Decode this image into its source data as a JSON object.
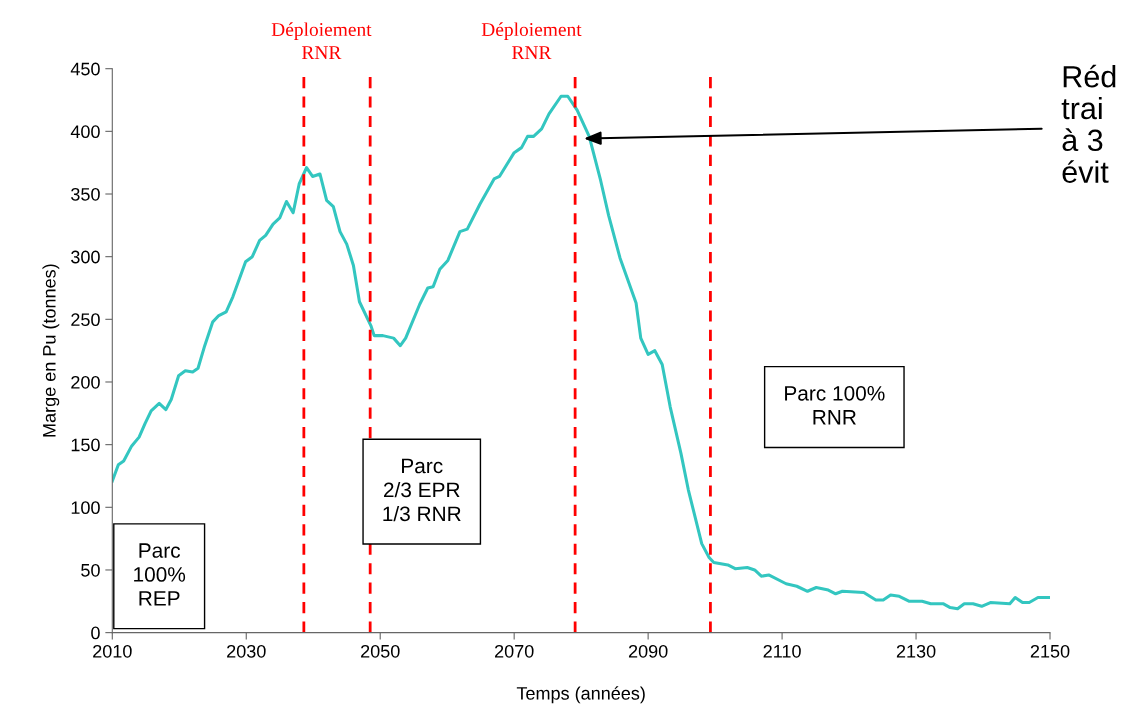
{
  "chart_data": {
    "type": "line",
    "xlabel": "Temps (années)",
    "ylabel": "Marge en Pu (tonnes)",
    "x": [
      2010,
      2010.9,
      2011.7,
      2012.9,
      2014,
      2014.9,
      2015.8,
      2017,
      2018,
      2018.8,
      2019.9,
      2020.9,
      2022,
      2022.8,
      2023.8,
      2025,
      2025.9,
      2027,
      2028,
      2029.9,
      2030.9,
      2032,
      2032.9,
      2034,
      2035,
      2036,
      2037,
      2037.9,
      2039,
      2039.9,
      2041,
      2042,
      2043,
      2044,
      2045,
      2046,
      2046.9,
      2048.6,
      2049.1,
      2050.4,
      2052,
      2053,
      2053.8,
      2055.9,
      2057.1,
      2057.9,
      2058.9,
      2060.1,
      2061.9,
      2063,
      2064.9,
      2067,
      2067.8,
      2070,
      2071.1,
      2072,
      2072.9,
      2074.1,
      2075.2,
      2077,
      2078,
      2079.4,
      2081.2,
      2082.9,
      2084.1,
      2085.8,
      2088.2,
      2088.9,
      2090,
      2091,
      2092.1,
      2093.3,
      2094.9,
      2096,
      2098,
      2099.1,
      2099.8,
      2101.9,
      2103,
      2104.8,
      2105.9,
      2106.9,
      2108,
      2110.6,
      2112.2,
      2113.8,
      2115.1,
      2116.9,
      2118,
      2119,
      2122.2,
      2124,
      2125.1,
      2126.2,
      2127.5,
      2129,
      2130.9,
      2132.2,
      2134.1,
      2135.1,
      2136.2,
      2137.2,
      2138.5,
      2139.8,
      2141.1,
      2144,
      2144.8,
      2145.9,
      2146.9,
      2148.2,
      2150
    ],
    "series": [
      {
        "color": "#33c6c0",
        "values": [
          121,
          134,
          137,
          149,
          156,
          167,
          177,
          183,
          178,
          186,
          205,
          209,
          208,
          211,
          229,
          248,
          253,
          256,
          268,
          296,
          300,
          313,
          317,
          326,
          331,
          344,
          335,
          358,
          371,
          364,
          366,
          345,
          340,
          320,
          310,
          293,
          264,
          245,
          237,
          237,
          235,
          229,
          235,
          262,
          275,
          276,
          290,
          297,
          320,
          322,
          342,
          362,
          364,
          383,
          387,
          396,
          396,
          402,
          414,
          428,
          428,
          417,
          396,
          361,
          333,
          299,
          263,
          235,
          222,
          225,
          214,
          180,
          143,
          114,
          71,
          60,
          56,
          54,
          51,
          52,
          50,
          45,
          46,
          39,
          37,
          33,
          36,
          34,
          31,
          33,
          32,
          26,
          26,
          30,
          29,
          25,
          25,
          23,
          23,
          20,
          19,
          23,
          23,
          21,
          24,
          23,
          28,
          24,
          24,
          28,
          28
        ]
      }
    ],
    "xlim": [
      2010,
      2150
    ],
    "ylim": [
      0,
      450
    ],
    "xticks": [
      2010,
      2030,
      2050,
      2070,
      2090,
      2110,
      2130,
      2150
    ],
    "yticks": [
      0,
      50,
      100,
      150,
      200,
      250,
      300,
      350,
      400,
      450
    ],
    "grid": false,
    "legend": false,
    "marker": "none",
    "line_style": "solid",
    "ref_lines": [
      {
        "axis": "x",
        "value": 2038.6,
        "color": "#ff0000",
        "line_style": "dashed"
      },
      {
        "axis": "x",
        "value": 2048.5,
        "color": "#ff0000",
        "line_style": "dashed"
      },
      {
        "axis": "x",
        "value": 2079.1,
        "color": "#ff0000",
        "line_style": "dashed"
      },
      {
        "axis": "x",
        "value": 2099.3,
        "color": "#ff0000",
        "line_style": "dashed"
      }
    ],
    "annotations": [
      "Déploiement\nRNR",
      "Déploiement\nRNR",
      "Parc\n100%\nREP",
      "Parc\n2/3 EPR\n1/3 RNR",
      "Parc 100%\nRNR",
      "Réd\ntrai\nà 3\névit"
    ]
  }
}
